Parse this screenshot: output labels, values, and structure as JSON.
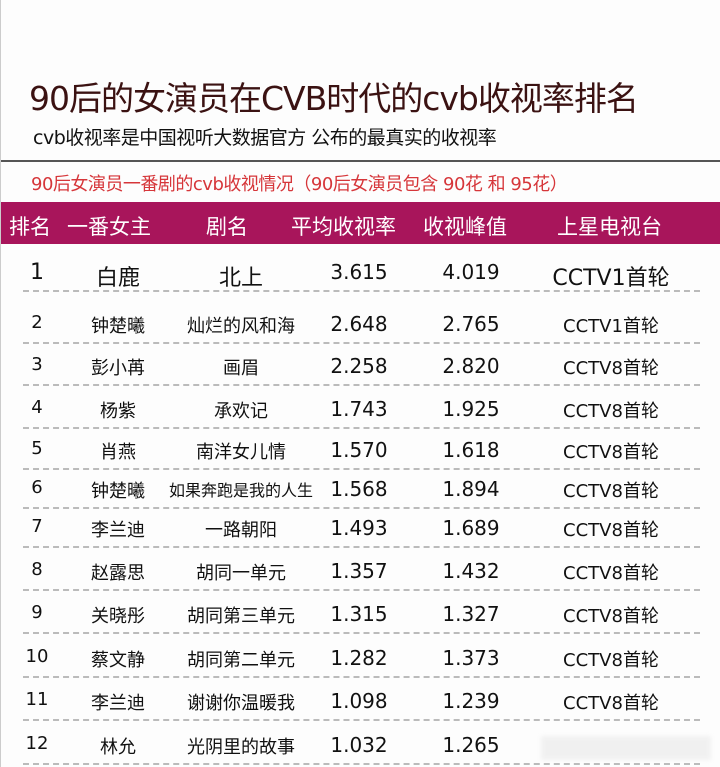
{
  "title": "90后的女演员在CVB时代的cvb收视率排名",
  "subtitle": "cvb收视率是中国视听大数据官方 公布的最真实的收视率",
  "section_title": "90后女演员一番剧的cvb收视情况（90后女演员包含 90花 和 95花）",
  "colors": {
    "header_bg": "#a8155b",
    "section_title": "#d6363a",
    "title": "#3b1212"
  },
  "table": {
    "headers": [
      "排名",
      "一番女主",
      "剧名",
      "平均收视率",
      "收视峰值",
      "上星电视台"
    ],
    "rows": [
      [
        "1",
        "白鹿",
        "北上",
        "3.615",
        "4.019",
        "CCTV1首轮"
      ],
      [
        "2",
        "钟楚曦",
        "灿烂的风和海",
        "2.648",
        "2.765",
        "CCTV1首轮"
      ],
      [
        "3",
        "彭小苒",
        "画眉",
        "2.258",
        "2.820",
        "CCTV8首轮"
      ],
      [
        "4",
        "杨紫",
        "承欢记",
        "1.743",
        "1.925",
        "CCTV8首轮"
      ],
      [
        "5",
        "肖燕",
        "南洋女儿情",
        "1.570",
        "1.618",
        "CCTV8首轮"
      ],
      [
        "6",
        "钟楚曦",
        "如果奔跑是我的人生",
        "1.568",
        "1.894",
        "CCTV8首轮"
      ],
      [
        "7",
        "李兰迪",
        "一路朝阳",
        "1.493",
        "1.689",
        "CCTV8首轮"
      ],
      [
        "8",
        "赵露思",
        "胡同一单元",
        "1.357",
        "1.432",
        "CCTV8首轮"
      ],
      [
        "9",
        "关晓彤",
        "胡同第三单元",
        "1.315",
        "1.327",
        "CCTV8首轮"
      ],
      [
        "10",
        "蔡文静",
        "胡同第二单元",
        "1.282",
        "1.373",
        "CCTV8首轮"
      ],
      [
        "11",
        "李兰迪",
        "谢谢你温暖我",
        "1.098",
        "1.239",
        "CCTV8首轮"
      ],
      [
        "12",
        "林允",
        "光阴里的故事",
        "1.032",
        "1.265",
        ""
      ]
    ]
  }
}
